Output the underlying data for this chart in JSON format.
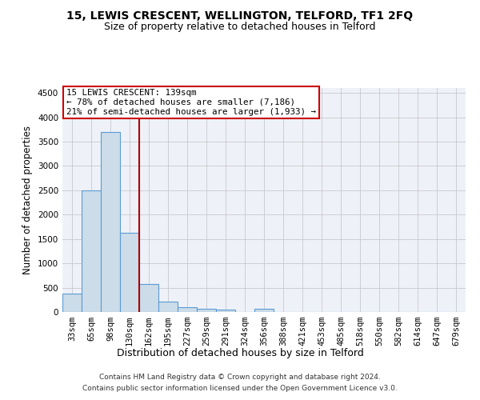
{
  "title1": "15, LEWIS CRESCENT, WELLINGTON, TELFORD, TF1 2FQ",
  "title2": "Size of property relative to detached houses in Telford",
  "xlabel": "Distribution of detached houses by size in Telford",
  "ylabel": "Number of detached properties",
  "footnote1": "Contains HM Land Registry data © Crown copyright and database right 2024.",
  "footnote2": "Contains public sector information licensed under the Open Government Licence v3.0.",
  "annotation_line1": "15 LEWIS CRESCENT: 139sqm",
  "annotation_line2": "← 78% of detached houses are smaller (7,186)",
  "annotation_line3": "21% of semi-detached houses are larger (1,933) →",
  "bar_color": "#ccdce8",
  "bar_edge_color": "#5b9bd5",
  "vline_color": "#aa0000",
  "categories": [
    "33sqm",
    "65sqm",
    "98sqm",
    "130sqm",
    "162sqm",
    "195sqm",
    "227sqm",
    "259sqm",
    "291sqm",
    "324sqm",
    "356sqm",
    "388sqm",
    "421sqm",
    "453sqm",
    "485sqm",
    "518sqm",
    "550sqm",
    "582sqm",
    "614sqm",
    "647sqm",
    "679sqm"
  ],
  "values": [
    375,
    2500,
    3700,
    1625,
    575,
    220,
    105,
    65,
    50,
    0,
    65,
    0,
    0,
    0,
    0,
    0,
    0,
    0,
    0,
    0,
    0
  ],
  "ylim": [
    0,
    4600
  ],
  "yticks": [
    0,
    500,
    1000,
    1500,
    2000,
    2500,
    3000,
    3500,
    4000,
    4500
  ],
  "background_color": "#eef2f8",
  "grid_color": "#c8c8cc",
  "title1_fontsize": 10,
  "title2_fontsize": 9,
  "tick_fontsize": 7.5,
  "ylabel_fontsize": 8.5,
  "xlabel_fontsize": 9
}
